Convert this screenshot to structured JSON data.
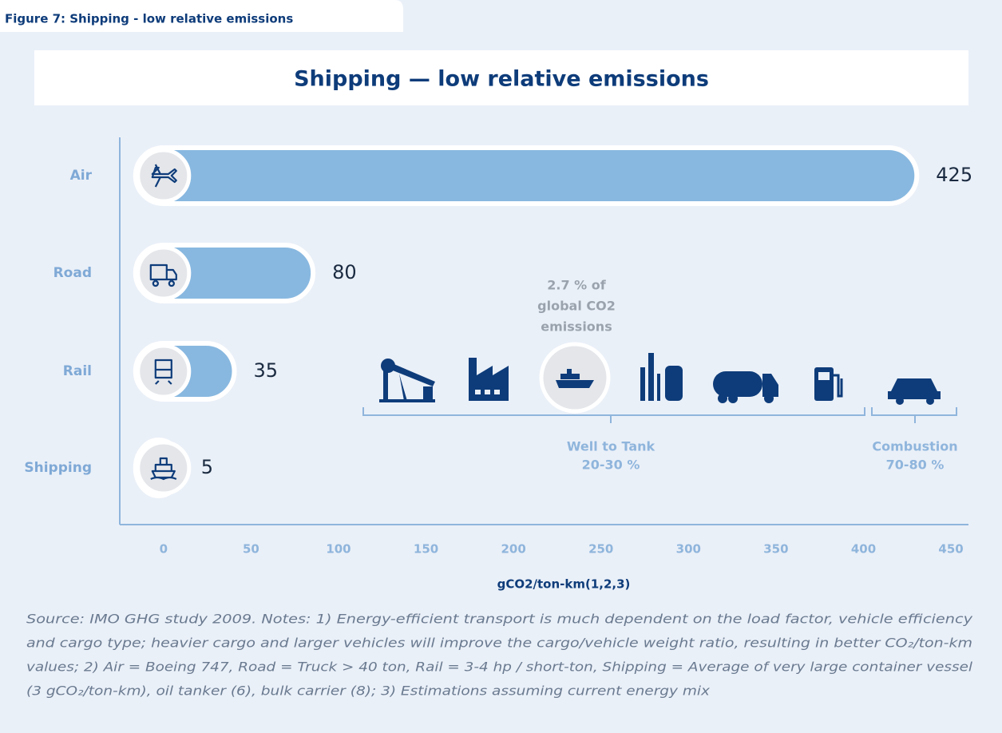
{
  "chart_data": {
    "type": "bar",
    "figure_label": "Figure 7: Shipping - low relative emissions",
    "title": "Shipping — low relative emissions",
    "categories": [
      "Air",
      "Road",
      "Rail",
      "Shipping"
    ],
    "values": [
      425,
      80,
      35,
      5
    ],
    "color": "#88b8e0",
    "xlim": [
      -25,
      460
    ],
    "xticks": [
      0,
      50,
      100,
      150,
      200,
      250,
      300,
      350,
      400,
      450
    ],
    "xlabel": "gCO2/ton-km(1,2,3)",
    "annotations": {
      "share": [
        "2.7 % of",
        "global CO2",
        "emissions"
      ],
      "well_to_tank": [
        "Well to Tank",
        "20-30 %"
      ],
      "combustion": [
        "Combustion",
        "70-80 %"
      ]
    },
    "note": [
      "Source: IMO GHG study 2009. Notes: 1) Energy-efficient transport is much dependent on the load factor, vehicle efficiency",
      "and cargo type; heavier cargo and larger vehicles will improve the cargo/vehicle weight ratio, resulting in better CO₂/ton-km",
      "values; 2) Air = Boeing 747, Road = Truck > 40 ton, Rail = 3-4 hp / short-ton, Shipping = Average of very large container vessel",
      "(3 gCO₂/ton-km), oil tanker (6), bulk carrier (8); 3) Estimations assuming current energy mix"
    ]
  }
}
